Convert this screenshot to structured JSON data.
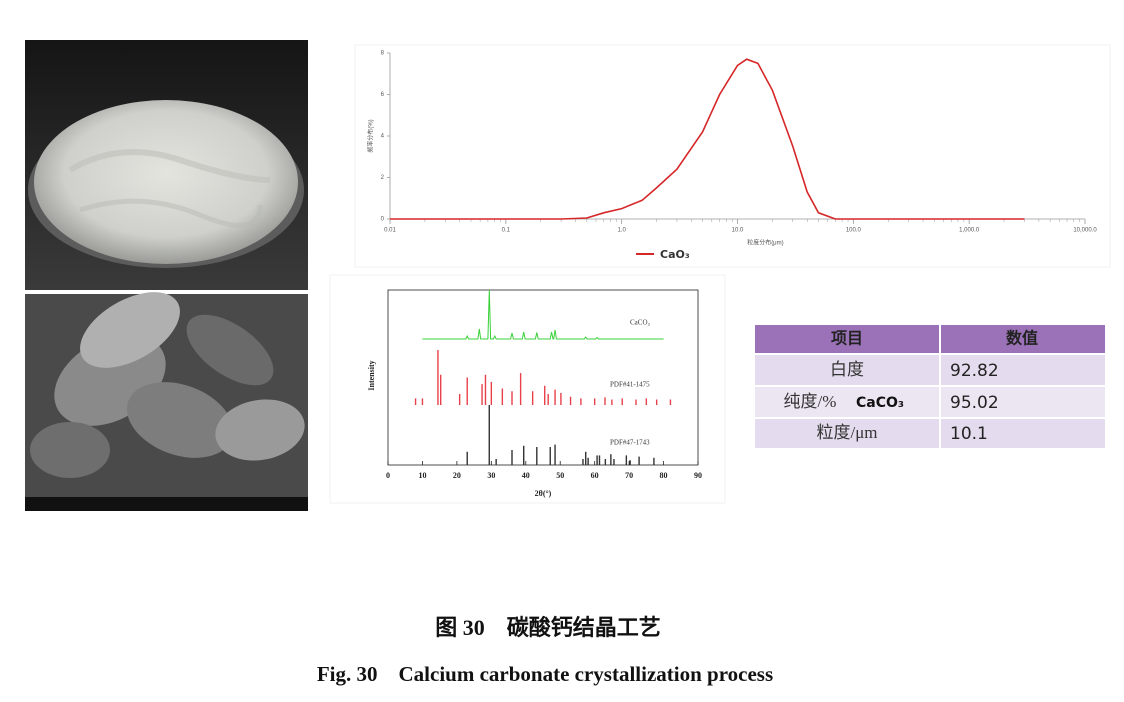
{
  "chart_data": [
    {
      "type": "line",
      "xlog": true,
      "xlabel": "粒度分布(μm)",
      "ylabel": "频率分布(%)",
      "x": [
        0.01,
        0.3,
        0.5,
        0.7,
        1,
        1.5,
        2,
        3,
        5,
        7,
        10,
        12,
        15,
        20,
        30,
        40,
        50,
        70,
        3000
      ],
      "series": [
        {
          "name": "CaO₃",
          "color": "#d62728",
          "values": [
            0,
            0,
            0.05,
            0.3,
            0.5,
            0.9,
            1.5,
            2.4,
            4.2,
            6,
            7.4,
            7.7,
            7.5,
            6.2,
            3.5,
            1.3,
            0.3,
            0,
            0
          ]
        }
      ],
      "xlim": [
        0.01,
        10000
      ],
      "xticks": [
        0.01,
        0.1,
        {
          "value": 1,
          "label": "1.0"
        },
        {
          "value": 10,
          "label": "10.0"
        },
        {
          "value": 100,
          "label": "100.0"
        },
        {
          "value": 1000,
          "label": "1,000.0"
        },
        {
          "value": 10000,
          "label": "10,000.0"
        }
      ],
      "ylim": [
        0,
        8
      ],
      "yticks": [
        0,
        2,
        4,
        6,
        8
      ]
    },
    {
      "type": "xrd",
      "xlabel": "2θ(°)",
      "ylabel": "Intensity",
      "xlim": [
        0,
        90
      ],
      "xticks": [
        0,
        10,
        20,
        30,
        40,
        50,
        60,
        70,
        80,
        90
      ],
      "series": [
        {
          "name": "CaCO₃",
          "color": "#3ad13a",
          "kind": "line",
          "x": [
            10,
            22.6,
            23,
            23.4,
            26.1,
            26.5,
            26.9,
            29.0,
            29.4,
            29.8,
            30.6,
            31,
            31.4,
            35.6,
            36,
            36.4,
            39,
            39.4,
            39.8,
            42.8,
            43.2,
            43.6,
            47.1,
            47.5,
            47.9,
            48.1,
            48.5,
            48.9,
            57,
            57.4,
            57.8,
            60.3,
            60.7,
            61.1,
            80
          ],
          "values": [
            2,
            2,
            8,
            2,
            2,
            22,
            2,
            2,
            100,
            2,
            2,
            8,
            2,
            2,
            14,
            2,
            2,
            16,
            2,
            2,
            15,
            2,
            2,
            16,
            2,
            2,
            20,
            2,
            2,
            6,
            2,
            2,
            5,
            2,
            2
          ]
        },
        {
          "name": "PDF#41-1475",
          "color": "#e8404a",
          "kind": "stick",
          "x": [
            8,
            10,
            14.5,
            15.3,
            20.8,
            23,
            27.3,
            28.3,
            30,
            33.2,
            36,
            38.5,
            42,
            45.5,
            46.5,
            48.5,
            50.2,
            53,
            56,
            60,
            63,
            65,
            68,
            72,
            75,
            78,
            82
          ],
          "values": [
            12,
            12,
            100,
            55,
            20,
            50,
            38,
            55,
            42,
            30,
            25,
            58,
            25,
            35,
            20,
            28,
            22,
            15,
            12,
            12,
            14,
            10,
            12,
            10,
            12,
            10,
            10
          ]
        },
        {
          "name": "PDF#47-1743",
          "color": "#333333",
          "kind": "stick",
          "x": [
            23,
            29.4,
            31.4,
            36,
            39.4,
            43.2,
            47.1,
            48.5,
            56.6,
            57.4,
            58.1,
            60.7,
            61.4,
            63.1,
            64.7,
            65.6,
            69.2,
            70.3,
            72.9,
            77.2
          ],
          "values": [
            22,
            100,
            10,
            25,
            32,
            30,
            30,
            34,
            10,
            22,
            12,
            16,
            16,
            10,
            18,
            10,
            16,
            8,
            14,
            12
          ]
        }
      ]
    }
  ],
  "table": {
    "header": [
      "项目",
      "数值"
    ],
    "rows": [
      {
        "item": "白度",
        "value": 92.82
      },
      {
        "item": "纯度/%",
        "note": "CaCO₃",
        "value": 95.02
      },
      {
        "item": "粒度/μm",
        "value": 10.1
      }
    ]
  },
  "caption": {
    "cn": "图 30　碳酸钙结晶工艺",
    "en": "Fig. 30　Calcium carbonate crystallization process"
  }
}
